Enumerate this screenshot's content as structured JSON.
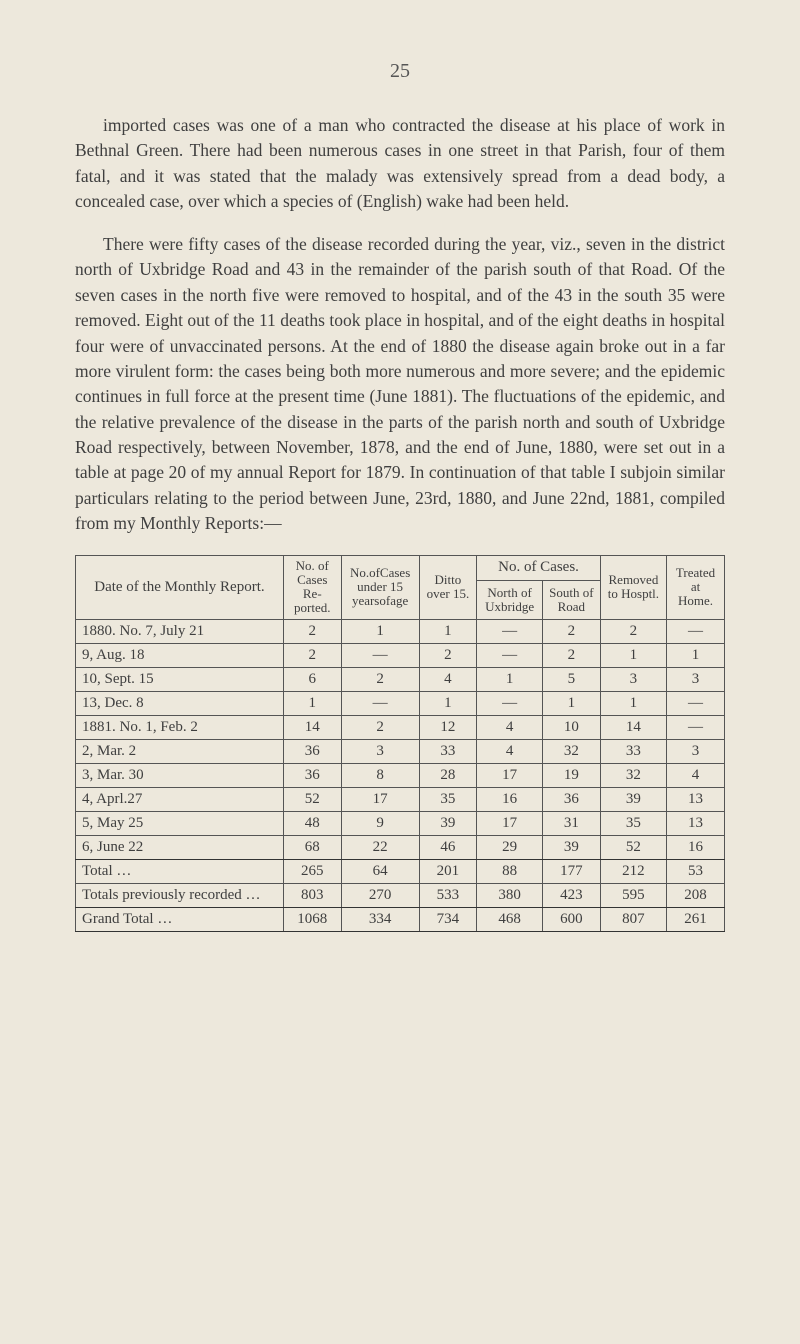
{
  "page_number": "25",
  "paragraphs": [
    "imported cases was one of a man who contracted the disease at his place of work in Bethnal Green. There had been numerous cases in one street in that Parish, four of them fatal, and it was stated that the malady was extensively spread from a dead body, a concealed case, over which a species of (English) wake had been held.",
    "There were fifty cases of the disease recorded during the year, viz., seven in the district north of Uxbridge Road and 43 in the remainder of the parish south of that Road. Of the seven cases in the north five were removed to hospital, and of the 43 in the south 35 were removed. Eight out of the 11 deaths took place in hospital, and of the eight deaths in hospital four were of unvaccinated persons. At the end of 1880 the disease again broke out in a far more virulent form: the cases being both more numerous and more severe; and the epidemic continues in full force at the present time (June 1881). The fluctuations of the epidemic, and the relative prevalence of the disease in the parts of the parish north and south of Uxbridge Road respectively, between November, 1878, and the end of June, 1880, were set out in a table at page 20 of my annual Report for 1879. In continuation of that table I subjoin similar particulars relating to the period between June, 23rd, 1880, and June 22nd, 1881, compiled from my Monthly Reports:—"
  ],
  "table": {
    "headers": {
      "date": "Date of the Monthly Report.",
      "no_cases": "No. of Cases Re- ported.",
      "under15": "No.ofCases under 15 yearsofage",
      "over15": "Ditto over 15.",
      "no_of_cases_span": "No. of Cases.",
      "north": "North of Uxbridge",
      "south": "South of Road",
      "removed": "Removed to Hosptl.",
      "treated": "Treated at Home."
    },
    "rows": [
      {
        "date": "1880. No. 7, July 21",
        "a": "2",
        "b": "1",
        "c": "1",
        "d": "—",
        "e": "2",
        "f": "2",
        "g": "—"
      },
      {
        "date": "9, Aug. 18",
        "a": "2",
        "b": "—",
        "c": "2",
        "d": "—",
        "e": "2",
        "f": "1",
        "g": "1"
      },
      {
        "date": "10, Sept. 15",
        "a": "6",
        "b": "2",
        "c": "4",
        "d": "1",
        "e": "5",
        "f": "3",
        "g": "3"
      },
      {
        "date": "13, Dec. 8",
        "a": "1",
        "b": "—",
        "c": "1",
        "d": "—",
        "e": "1",
        "f": "1",
        "g": "—"
      },
      {
        "date": "1881. No. 1, Feb. 2",
        "a": "14",
        "b": "2",
        "c": "12",
        "d": "4",
        "e": "10",
        "f": "14",
        "g": "—"
      },
      {
        "date": "2, Mar. 2",
        "a": "36",
        "b": "3",
        "c": "33",
        "d": "4",
        "e": "32",
        "f": "33",
        "g": "3"
      },
      {
        "date": "3, Mar. 30",
        "a": "36",
        "b": "8",
        "c": "28",
        "d": "17",
        "e": "19",
        "f": "32",
        "g": "4"
      },
      {
        "date": "4, Aprl.27",
        "a": "52",
        "b": "17",
        "c": "35",
        "d": "16",
        "e": "36",
        "f": "39",
        "g": "13"
      },
      {
        "date": "5, May 25",
        "a": "48",
        "b": "9",
        "c": "39",
        "d": "17",
        "e": "31",
        "f": "35",
        "g": "13"
      },
      {
        "date": "6, June 22",
        "a": "68",
        "b": "22",
        "c": "46",
        "d": "29",
        "e": "39",
        "f": "52",
        "g": "16"
      }
    ],
    "totals": [
      {
        "date": "Total …",
        "a": "265",
        "b": "64",
        "c": "201",
        "d": "88",
        "e": "177",
        "f": "212",
        "g": "53"
      },
      {
        "date": "Totals previously recorded …",
        "a": "803",
        "b": "270",
        "c": "533",
        "d": "380",
        "e": "423",
        "f": "595",
        "g": "208"
      }
    ],
    "grand": {
      "date": "Grand Total …",
      "a": "1068",
      "b": "334",
      "c": "734",
      "d": "468",
      "e": "600",
      "f": "807",
      "g": "261"
    }
  },
  "colors": {
    "background": "#ede8dc",
    "text": "#3f3f3f",
    "border": "#555555"
  }
}
